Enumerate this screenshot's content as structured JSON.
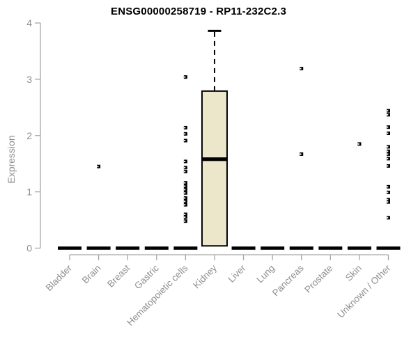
{
  "title": "ENSG00000258719 - RP11-232C2.3",
  "chart_data": {
    "type": "boxplot",
    "title": "ENSG00000258719 - RP11-232C2.3",
    "ylabel": "Expression",
    "xlabel": "",
    "ylim": [
      0,
      4
    ],
    "yticks": [
      0,
      1,
      2,
      3,
      4
    ],
    "grid": false,
    "legend": false,
    "categories": [
      "Bladder",
      "Brain",
      "Breast",
      "Gastric",
      "Hematopoietic cells",
      "Kidney",
      "Liver",
      "Lung",
      "Pancreas",
      "Prostate",
      "Skin",
      "Unknown / Other"
    ],
    "boxes": [
      {
        "category": "Bladder",
        "q1": 0,
        "median": 0,
        "q3": 0,
        "whisker_low": 0,
        "whisker_high": 0
      },
      {
        "category": "Brain",
        "q1": 0,
        "median": 0,
        "q3": 0,
        "whisker_low": 0,
        "whisker_high": 0
      },
      {
        "category": "Breast",
        "q1": 0,
        "median": 0,
        "q3": 0,
        "whisker_low": 0,
        "whisker_high": 0
      },
      {
        "category": "Gastric",
        "q1": 0,
        "median": 0,
        "q3": 0,
        "whisker_low": 0,
        "whisker_high": 0
      },
      {
        "category": "Hematopoietic cells",
        "q1": 0,
        "median": 0,
        "q3": 0,
        "whisker_low": 0,
        "whisker_high": 0
      },
      {
        "category": "Kidney",
        "q1": 0.04,
        "median": 1.58,
        "q3": 2.79,
        "whisker_low": 0.04,
        "whisker_high": 3.86
      },
      {
        "category": "Liver",
        "q1": 0,
        "median": 0,
        "q3": 0,
        "whisker_low": 0,
        "whisker_high": 0
      },
      {
        "category": "Lung",
        "q1": 0,
        "median": 0,
        "q3": 0,
        "whisker_low": 0,
        "whisker_high": 0
      },
      {
        "category": "Pancreas",
        "q1": 0,
        "median": 0,
        "q3": 0,
        "whisker_low": 0,
        "whisker_high": 0
      },
      {
        "category": "Prostate",
        "q1": 0,
        "median": 0,
        "q3": 0,
        "whisker_low": 0,
        "whisker_high": 0
      },
      {
        "category": "Skin",
        "q1": 0,
        "median": 0,
        "q3": 0,
        "whisker_low": 0,
        "whisker_high": 0
      },
      {
        "category": "Unknown / Other",
        "q1": 0,
        "median": 0,
        "q3": 0,
        "whisker_low": 0,
        "whisker_high": 0
      }
    ],
    "outliers": [
      {
        "category": "Brain",
        "values": [
          1.45
        ]
      },
      {
        "category": "Hematopoietic cells",
        "values": [
          3.04,
          2.14,
          2.03,
          1.91,
          1.54,
          1.43,
          1.36,
          1.16,
          1.1,
          1.04,
          0.98,
          0.89,
          0.83,
          0.77,
          0.6,
          0.55,
          0.48
        ]
      },
      {
        "category": "Pancreas",
        "values": [
          3.19,
          1.67
        ]
      },
      {
        "category": "Skin",
        "values": [
          1.85
        ]
      },
      {
        "category": "Unknown / Other",
        "values": [
          2.44,
          2.37,
          2.15,
          2.04,
          1.8,
          1.72,
          1.67,
          1.59,
          1.46,
          1.09,
          0.99,
          0.86,
          0.82,
          0.54
        ]
      }
    ],
    "style": {
      "box_fill": "#ECE6CB",
      "box_stroke": "#000000",
      "median_color": "#000000",
      "outlier_color": "#000000",
      "axis_color": "#A6A6A6",
      "tick_label_color": "#8F8F8F",
      "title_color": "#000000",
      "background": "#FFFFFF"
    }
  }
}
